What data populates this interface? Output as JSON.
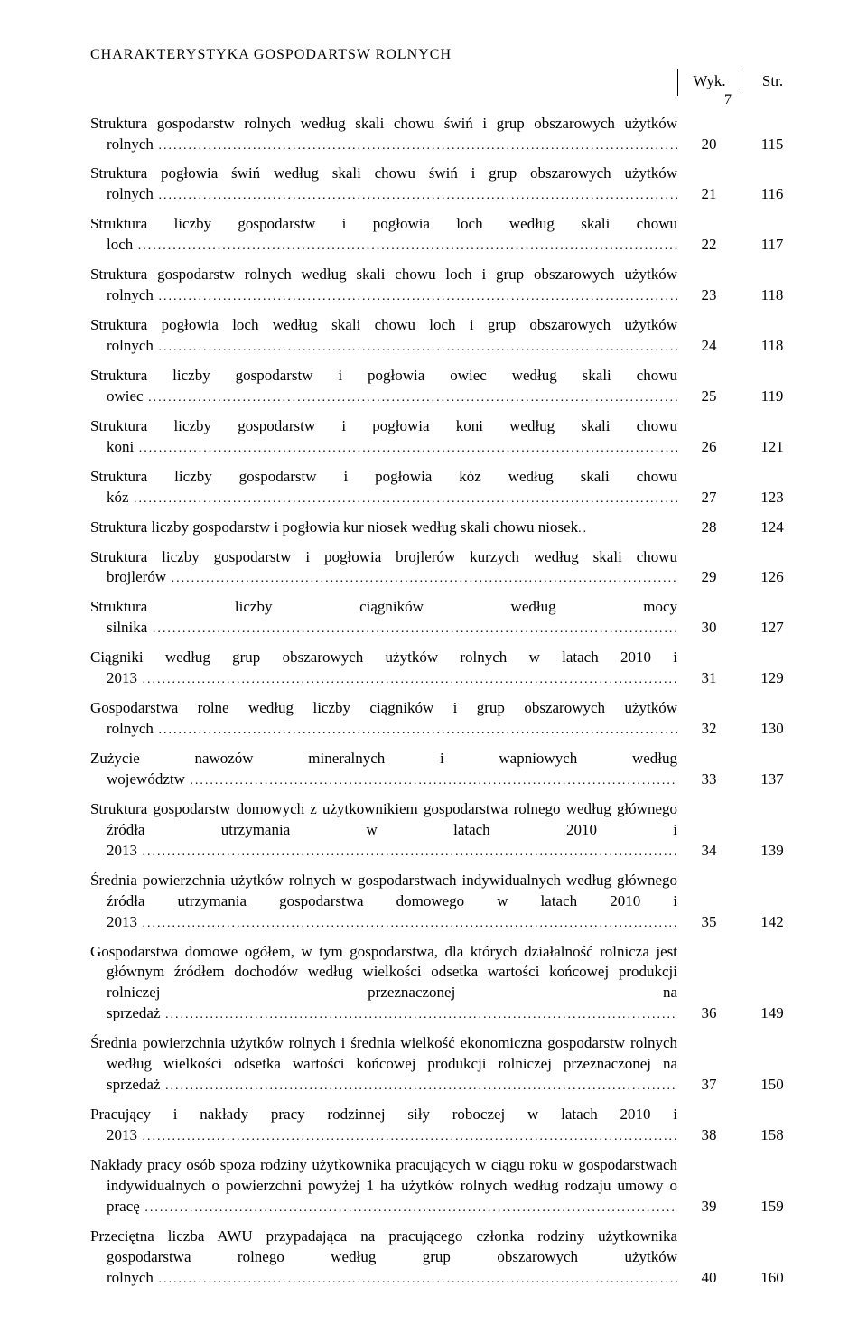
{
  "header": "CHARAKTERYSTYKA  GOSPODARTSW  ROLNYCH",
  "page_number": "7",
  "columns": {
    "c1": "Wyk.",
    "c2": "Str."
  },
  "rows": [
    {
      "label": "Struktura  gospodarstw rolnych według skali chowu świń i grup obszarowych użytków rolnych",
      "wyk": "20",
      "str": "115"
    },
    {
      "label": "Struktura  pogłowia świń według skali chowu świń i grup obszarowych użytków rolnych",
      "wyk": "21",
      "str": "116"
    },
    {
      "label": "Struktura liczby gospodarstw i pogłowia loch według skali chowu loch",
      "wyk": "22",
      "str": "117"
    },
    {
      "label": "Struktura  gospodarstw rolnych  według skali chowu loch i grup obszarowych użytków rolnych",
      "wyk": "23",
      "str": "118"
    },
    {
      "label": "Struktura  pogłowia loch według skali chowu loch i grup obszarowych użytków rolnych",
      "wyk": "24",
      "str": "118"
    },
    {
      "label": "Struktura liczby gospodarstw i pogłowia owiec według skali chowu owiec",
      "wyk": "25",
      "str": "119"
    },
    {
      "label": "Struktura liczby gospodarstw i pogłowia koni według skali chowu koni",
      "wyk": "26",
      "str": "121"
    },
    {
      "label": "Struktura liczby gospodarstw i pogłowia kóz według skali chowu kóz",
      "wyk": "27",
      "str": "123"
    },
    {
      "label": "Struktura liczby gospodarstw i pogłowia kur niosek według skali chowu niosek",
      "wyk": "28",
      "str": "124",
      "noDots": true
    },
    {
      "label": "Struktura liczby gospodarstw  i pogłowia brojlerów kurzych według skali chowu brojlerów",
      "wyk": "29",
      "str": "126"
    },
    {
      "label": "Struktura liczby ciągników według mocy silnika",
      "wyk": "30",
      "str": "127"
    },
    {
      "label": "Ciągniki według grup obszarowych użytków rolnych w latach 2010 i 2013",
      "wyk": "31",
      "str": "129"
    },
    {
      "label": "Gospodarstwa rolne według liczby ciągników i grup obszarowych  użytków rolnych",
      "wyk": "32",
      "str": "130"
    },
    {
      "label": "Zużycie nawozów mineralnych i wapniowych według województw",
      "wyk": "33",
      "str": "137"
    },
    {
      "label": "Struktura gospodarstw domowych  z użytkownikiem gospodarstwa rolnego według głównego źródła utrzymania w latach 2010 i 2013",
      "wyk": "34",
      "str": "139"
    },
    {
      "label": "Średnia powierzchnia użytków rolnych w gospodarstwach indywidualnych według głównego źródła utrzymania gospodarstwa domowego w latach 2010 i 2013",
      "wyk": "35",
      "str": "142"
    },
    {
      "label": "Gospodarstwa domowe ogółem, w tym gospodarstwa, dla których działalność rolnicza jest głównym źródłem dochodów według wielkości odsetka wartości końcowej produkcji rolniczej przeznaczonej na sprzedaż",
      "wyk": "36",
      "str": "149"
    },
    {
      "label": "Średnia powierzchnia użytków rolnych i średnia wielkość ekonomiczna gospodarstw rolnych według wielkości odsetka wartości końcowej produkcji rolniczej przeznaczonej na sprzedaż",
      "wyk": "37",
      "str": "150"
    },
    {
      "label": "Pracujący i nakłady pracy rodzinnej siły roboczej w latach 2010 i 2013",
      "wyk": "38",
      "str": "158"
    },
    {
      "label": "Nakłady pracy osób spoza rodziny użytkownika pracujących w ciągu roku w gospodarstwach indywidualnych o powierzchni powyżej 1 ha użytków rolnych według rodzaju umowy o pracę",
      "wyk": "39",
      "str": "159"
    },
    {
      "label": "Przeciętna liczba AWU przypadająca na pracującego członka rodziny użytkownika gospodarstwa rolnego według grup obszarowych użytków rolnych",
      "wyk": "40",
      "str": "160"
    }
  ]
}
